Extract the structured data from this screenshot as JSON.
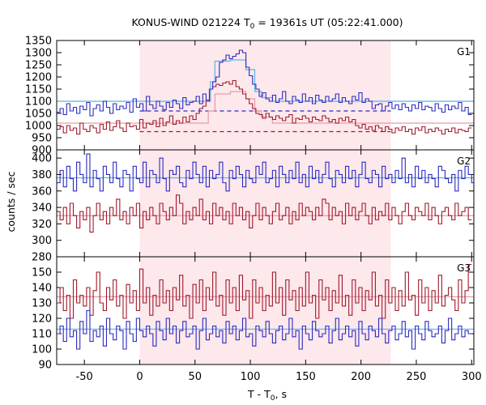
{
  "chart_data": {
    "type": "line",
    "title": "KONUS-WIND 021224 T",
    "title_sub": "0",
    "title_tail": " = 19361s UT (05:22:41.000)",
    "xlabel": "T - T",
    "xlabel_sub": "0",
    "xlabel_tail": ", s",
    "ylabel": "counts / sec",
    "xlim": [
      -75,
      302
    ],
    "xticks": [
      -50,
      0,
      50,
      100,
      150,
      200,
      250,
      300
    ],
    "shade_range": [
      0,
      227
    ],
    "colors": {
      "blue": "#2b2bbf",
      "red": "#a01a2a",
      "blue_model": "#5ab4e6",
      "red_model": "#e89aa6",
      "shade": "#fde8ec"
    },
    "panels": [
      {
        "name": "G1",
        "ylim": [
          900,
          1350
        ],
        "yticks": [
          900,
          950,
          1000,
          1050,
          1100,
          1150,
          1200,
          1250,
          1300,
          1350
        ],
        "blue_background": 1060,
        "red_background": 975,
        "blue_model": {
          "base": 1100,
          "steps": [
            [
              64,
              1180
            ],
            [
              68,
              1265
            ],
            [
              82,
              1270
            ],
            [
              96,
              1230
            ],
            [
              104,
              1140
            ],
            [
              110,
              1115
            ],
            [
              120,
              1100
            ]
          ]
        },
        "red_model": {
          "base": 1010,
          "steps": [
            [
              62,
              1060
            ],
            [
              68,
              1130
            ],
            [
              82,
              1140
            ],
            [
              96,
              1110
            ],
            [
              104,
              1060
            ],
            [
              110,
              1035
            ],
            [
              120,
              1010
            ]
          ]
        },
        "blue_series": {
          "bin": 3,
          "x0": -75,
          "values": [
            1055,
            1070,
            1045,
            1090,
            1060,
            1075,
            1050,
            1080,
            1065,
            1095,
            1040,
            1070,
            1085,
            1060,
            1100,
            1075,
            1050,
            1090,
            1065,
            1080,
            1070,
            1095,
            1055,
            1110,
            1075,
            1090,
            1060,
            1120,
            1085,
            1070,
            1100,
            1080,
            1065,
            1095,
            1075,
            1105,
            1090,
            1070,
            1115,
            1085,
            1095,
            1100,
            1120,
            1090,
            1130,
            1105,
            1150,
            1180,
            1200,
            1260,
            1270,
            1290,
            1275,
            1285,
            1295,
            1310,
            1300,
            1240,
            1205,
            1170,
            1150,
            1120,
            1135,
            1110,
            1100,
            1125,
            1095,
            1110,
            1140,
            1100,
            1090,
            1120,
            1105,
            1095,
            1130,
            1100,
            1115,
            1090,
            1125,
            1105,
            1095,
            1120,
            1100,
            1110,
            1130,
            1095,
            1115,
            1100,
            1090,
            1120,
            1105,
            1135,
            1095,
            1110,
            1100,
            1070,
            1085,
            1090,
            1060,
            1080,
            1095,
            1070,
            1085,
            1065,
            1090,
            1075,
            1060,
            1085,
            1070,
            1095,
            1065,
            1080,
            1075,
            1060,
            1090,
            1070,
            1055,
            1085,
            1065,
            1080,
            1070,
            1095,
            1060,
            1075,
            1045
          ]
        },
        "red_series": {
          "bin": 3,
          "x0": -75,
          "values": [
            985,
            995,
            970,
            1000,
            980,
            990,
            965,
            1010,
            985,
            975,
            1000,
            990,
            970,
            1005,
            985,
            1015,
            980,
            995,
            1020,
            990,
            975,
            1010,
            995,
            1000,
            985,
            1025,
            990,
            1010,
            1005,
            1020,
            995,
            1030,
            1000,
            1015,
            1040,
            1005,
            1020,
            1010,
            1035,
            1015,
            1040,
            1025,
            1050,
            1070,
            1080,
            1100,
            1150,
            1160,
            1170,
            1165,
            1175,
            1180,
            1170,
            1185,
            1160,
            1150,
            1130,
            1110,
            1090,
            1070,
            1050,
            1045,
            1030,
            1050,
            1035,
            1025,
            1040,
            1030,
            1020,
            1035,
            1045,
            1010,
            1030,
            1025,
            1040,
            1030,
            1015,
            1035,
            1025,
            1020,
            1040,
            1030,
            1015,
            1025,
            1010,
            1030,
            1020,
            1035,
            1015,
            1025,
            1000,
            990,
            1005,
            985,
            995,
            980,
            1000,
            990,
            975,
            995,
            985,
            970,
            990,
            980,
            995,
            975,
            985,
            965,
            990,
            980,
            995,
            970,
            985,
            975,
            990,
            980,
            965,
            985,
            975,
            990,
            970,
            985,
            980,
            975,
            990
          ]
        }
      },
      {
        "name": "G2",
        "ylim": [
          280,
          410
        ],
        "yticks": [
          280,
          300,
          320,
          340,
          360,
          380,
          400
        ],
        "blue_model": {
          "base": 376,
          "steps": []
        },
        "red_model": {
          "base": 330,
          "steps": []
        },
        "blue_series": {
          "bin": 3,
          "x0": -75,
          "values": [
            370,
            385,
            365,
            390,
            375,
            360,
            395,
            380,
            370,
            405,
            365,
            385,
            375,
            360,
            390,
            380,
            370,
            395,
            375,
            365,
            385,
            380,
            360,
            390,
            375,
            370,
            395,
            365,
            385,
            380,
            370,
            400,
            375,
            360,
            385,
            380,
            390,
            370,
            365,
            385,
            375,
            395,
            380,
            370,
            390,
            365,
            385,
            375,
            380,
            395,
            370,
            360,
            385,
            375,
            390,
            380,
            365,
            385,
            375,
            370,
            390,
            380,
            395,
            370,
            375,
            385,
            365,
            390,
            380,
            370,
            385,
            375,
            395,
            370,
            380,
            365,
            390,
            375,
            385,
            370,
            380,
            395,
            375,
            365,
            385,
            380,
            370,
            390,
            375,
            385,
            365,
            380,
            395,
            375,
            370,
            385,
            380,
            365,
            390,
            375,
            380,
            370,
            385,
            375,
            400,
            370,
            380,
            365,
            390,
            375,
            385,
            370,
            380,
            375,
            365,
            390,
            385,
            375,
            370,
            380,
            360,
            385,
            375,
            390,
            380,
            370
          ]
        },
        "red_series": {
          "bin": 3,
          "x0": -75,
          "values": [
            335,
            325,
            340,
            320,
            345,
            330,
            315,
            335,
            325,
            340,
            310,
            330,
            345,
            325,
            335,
            320,
            340,
            330,
            350,
            325,
            335,
            320,
            340,
            330,
            345,
            315,
            335,
            325,
            340,
            330,
            320,
            345,
            335,
            325,
            340,
            330,
            355,
            345,
            320,
            335,
            325,
            340,
            330,
            350,
            325,
            335,
            320,
            345,
            330,
            340,
            325,
            335,
            320,
            345,
            330,
            340,
            325,
            335,
            315,
            330,
            345,
            325,
            340,
            330,
            320,
            335,
            345,
            325,
            330,
            340,
            320,
            335,
            325,
            345,
            330,
            340,
            335,
            325,
            340,
            330,
            350,
            345,
            325,
            340,
            330,
            335,
            320,
            345,
            330,
            340,
            325,
            335,
            345,
            330,
            320,
            340,
            325,
            335,
            330,
            345,
            325,
            340,
            330,
            320,
            335,
            345,
            330,
            325,
            340,
            335,
            330,
            345,
            325,
            340,
            330,
            320,
            335,
            340,
            330,
            325,
            345,
            330,
            335,
            340,
            325
          ]
        }
      },
      {
        "name": "G3",
        "ylim": [
          90,
          160
        ],
        "yticks": [
          90,
          100,
          110,
          120,
          130,
          140,
          150
        ],
        "blue_model": {
          "base": 113,
          "steps": []
        },
        "red_model": {
          "base": 134,
          "steps": []
        },
        "blue_series": {
          "bin": 3,
          "x0": -75,
          "values": [
            110,
            115,
            105,
            120,
            108,
            112,
            100,
            118,
            110,
            125,
            105,
            112,
            108,
            115,
            102,
            120,
            110,
            106,
            115,
            112,
            100,
            118,
            110,
            105,
            120,
            112,
            108,
            115,
            110,
            102,
            118,
            112,
            106,
            120,
            110,
            115,
            104,
            112,
            118,
            108,
            110,
            115,
            100,
            112,
            120,
            106,
            110,
            115,
            108,
            112,
            104,
            118,
            110,
            115,
            106,
            112,
            120,
            108,
            110,
            102,
            115,
            112,
            108,
            118,
            110,
            104,
            112,
            115,
            106,
            110,
            120,
            108,
            112,
            100,
            115,
            110,
            106,
            118,
            112,
            108,
            110,
            115,
            104,
            112,
            120,
            106,
            110,
            115,
            108,
            112,
            102,
            118,
            110,
            106,
            115,
            112,
            108,
            120,
            110,
            104,
            112,
            115,
            106,
            110,
            118,
            108,
            112,
            100,
            115,
            110,
            106,
            118,
            112,
            108,
            110,
            115,
            104,
            112,
            120,
            106,
            110,
            115,
            108,
            112,
            110
          ]
        },
        "red_series": {
          "bin": 3,
          "x0": -75,
          "values": [
            130,
            140,
            125,
            135,
            120,
            145,
            130,
            135,
            128,
            140,
            122,
            138,
            150,
            130,
            125,
            140,
            132,
            145,
            128,
            135,
            120,
            142,
            130,
            138,
            125,
            152,
            130,
            140,
            122,
            135,
            128,
            145,
            130,
            138,
            125,
            140,
            132,
            148,
            128,
            135,
            120,
            142,
            130,
            145,
            125,
            140,
            132,
            150,
            128,
            135,
            122,
            145,
            130,
            140,
            125,
            148,
            132,
            138,
            120,
            145,
            130,
            140,
            125,
            135,
            128,
            150,
            130,
            140,
            122,
            145,
            132,
            138,
            125,
            140,
            128,
            150,
            130,
            135,
            120,
            145,
            132,
            140,
            125,
            138,
            130,
            148,
            128,
            135,
            122,
            145,
            130,
            140,
            125,
            138,
            132,
            150,
            128,
            135,
            120,
            145,
            130,
            140,
            125,
            138,
            128,
            150,
            132,
            135,
            122,
            145,
            130,
            140,
            125,
            138,
            130,
            148,
            128,
            135,
            140,
            132,
            125,
            145,
            130,
            138,
            155
          ]
        }
      }
    ]
  }
}
